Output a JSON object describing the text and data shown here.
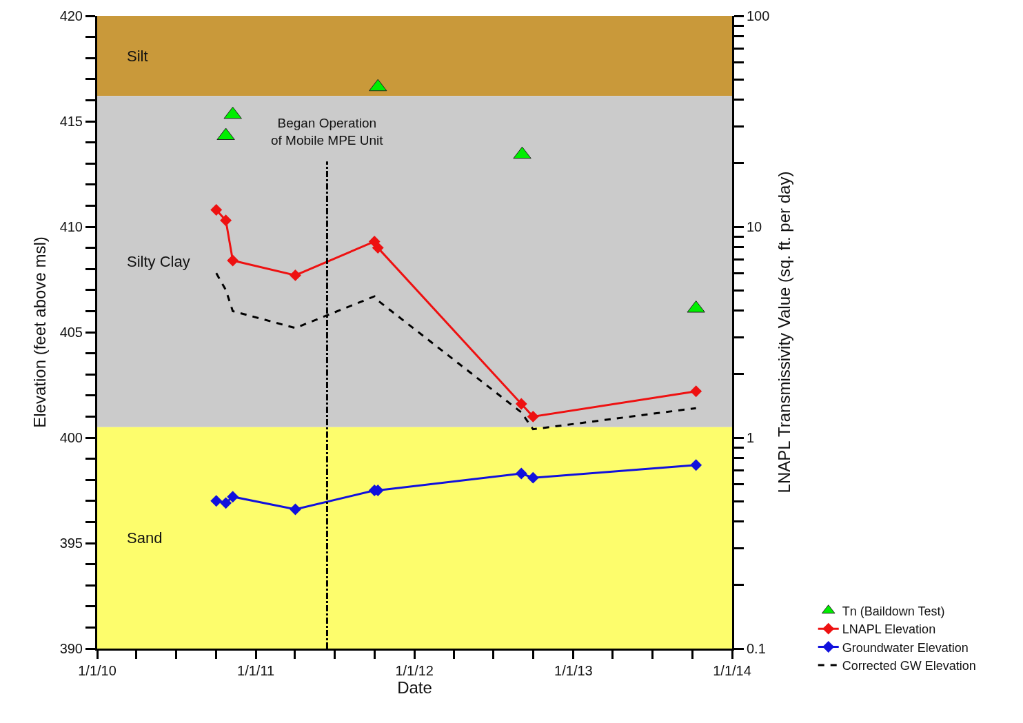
{
  "chart_data": {
    "type": "line",
    "xlabel": "Date",
    "ylabel": "Elevation (feet above msl)",
    "y2label": "LNAPL Transmissivity Value (sq. ft. per day)",
    "xlim": [
      "2010-01-01",
      "2014-01-01"
    ],
    "xticks": [
      {
        "value": "2010-01-01",
        "label": "1/1/10"
      },
      {
        "value": "2010-04-01",
        "label": null
      },
      {
        "value": "2010-07-01",
        "label": null
      },
      {
        "value": "2010-10-01",
        "label": null
      },
      {
        "value": "2011-01-01",
        "label": "1/1/11"
      },
      {
        "value": "2011-04-01",
        "label": null
      },
      {
        "value": "2011-07-01",
        "label": null
      },
      {
        "value": "2011-10-01",
        "label": null
      },
      {
        "value": "2012-01-01",
        "label": "1/1/12"
      },
      {
        "value": "2012-04-01",
        "label": null
      },
      {
        "value": "2012-07-01",
        "label": null
      },
      {
        "value": "2012-10-01",
        "label": null
      },
      {
        "value": "2013-01-01",
        "label": "1/1/13"
      },
      {
        "value": "2013-04-01",
        "label": null
      },
      {
        "value": "2013-07-01",
        "label": null
      },
      {
        "value": "2013-10-01",
        "label": null
      },
      {
        "value": "2014-01-01",
        "label": "1/1/14"
      }
    ],
    "ylim": [
      390,
      420
    ],
    "yticks": [
      390,
      {
        "value": 391,
        "label": null
      },
      {
        "value": 392,
        "label": null
      },
      {
        "value": 393,
        "label": null
      },
      {
        "value": 394,
        "label": null
      },
      395,
      {
        "value": 396,
        "label": null
      },
      {
        "value": 397,
        "label": null
      },
      {
        "value": 398,
        "label": null
      },
      {
        "value": 399,
        "label": null
      },
      400,
      {
        "value": 401,
        "label": null
      },
      {
        "value": 402,
        "label": null
      },
      {
        "value": 403,
        "label": null
      },
      {
        "value": 404,
        "label": null
      },
      405,
      {
        "value": 406,
        "label": null
      },
      {
        "value": 407,
        "label": null
      },
      {
        "value": 408,
        "label": null
      },
      {
        "value": 409,
        "label": null
      },
      410,
      {
        "value": 411,
        "label": null
      },
      {
        "value": 412,
        "label": null
      },
      {
        "value": 413,
        "label": null
      },
      {
        "value": 414,
        "label": null
      },
      415,
      {
        "value": 416,
        "label": null
      },
      {
        "value": 417,
        "label": null
      },
      {
        "value": 418,
        "label": null
      },
      {
        "value": 419,
        "label": null
      },
      420
    ],
    "y2lim": [
      0.1,
      100
    ],
    "y2ticks": [
      0.1,
      {
        "value": 0.2,
        "label": null
      },
      {
        "value": 0.3,
        "label": null
      },
      {
        "value": 0.4,
        "label": null
      },
      {
        "value": 0.5,
        "label": null
      },
      {
        "value": 0.6,
        "label": null
      },
      {
        "value": 0.7,
        "label": null
      },
      {
        "value": 0.8,
        "label": null
      },
      {
        "value": 0.9,
        "label": null
      },
      1,
      {
        "value": 2,
        "label": null
      },
      {
        "value": 3,
        "label": null
      },
      {
        "value": 4,
        "label": null
      },
      {
        "value": 5,
        "label": null
      },
      {
        "value": 6,
        "label": null
      },
      {
        "value": 7,
        "label": null
      },
      {
        "value": 8,
        "label": null
      },
      {
        "value": 9,
        "label": null
      },
      10,
      {
        "value": 20,
        "label": null
      },
      {
        "value": 30,
        "label": null
      },
      {
        "value": 40,
        "label": null
      },
      {
        "value": 50,
        "label": null
      },
      {
        "value": 60,
        "label": null
      },
      {
        "value": 70,
        "label": null
      },
      {
        "value": 80,
        "label": null
      },
      {
        "value": 90,
        "label": null
      },
      100
    ],
    "log": "y2",
    "grid": false,
    "legend": "bottom right",
    "bands": [
      {
        "axis": "y",
        "from": 416.2,
        "to": 420,
        "label": "Silt",
        "color": "#c9993a"
      },
      {
        "axis": "y",
        "from": 400.5,
        "to": 416.2,
        "label": "Silty Clay",
        "color": "#cbcbcb"
      },
      {
        "axis": "y",
        "from": 390,
        "to": 400.5,
        "label": "Sand",
        "color": "#fdfd6c"
      }
    ],
    "ref_lines": [
      {
        "axis": "x",
        "value": "2011-06-14",
        "label": "Began Operation\nof Mobile MPE Unit",
        "color": "#000000",
        "line_style": "dashdot"
      }
    ],
    "series": [
      {
        "name": "Tn (Baildown Test)",
        "type": "scatter",
        "axis": "y2",
        "marker": "triangle",
        "color": "#00ee00",
        "x": [
          "2010-10-24",
          "2010-11-09",
          "2011-10-09",
          "2012-09-05",
          "2013-10-10"
        ],
        "values": [
          27,
          34,
          46,
          22,
          4.1
        ]
      },
      {
        "name": "LNAPL Elevation",
        "marker": "diamond",
        "line_style": "solid",
        "color": "#ee1111",
        "x": [
          "2010-10-02",
          "2010-10-24",
          "2010-11-09",
          "2011-04-02",
          "2011-10-01",
          "2011-10-09",
          "2012-09-03",
          "2012-09-30",
          "2013-10-10"
        ],
        "values": [
          410.8,
          410.3,
          408.4,
          407.7,
          409.3,
          409.0,
          401.6,
          401.0,
          402.2
        ]
      },
      {
        "name": "Groundwater Elevation",
        "marker": "diamond",
        "line_style": "solid",
        "color": "#1111dd",
        "x": [
          "2010-10-02",
          "2010-10-24",
          "2010-11-09",
          "2011-04-02",
          "2011-10-01",
          "2011-10-09",
          "2012-09-03",
          "2012-09-30",
          "2013-10-10"
        ],
        "values": [
          397.0,
          396.9,
          397.2,
          396.6,
          397.5,
          397.5,
          398.3,
          398.1,
          398.7
        ]
      },
      {
        "name": "Corrected GW Elevation",
        "marker": "none",
        "line_style": "dashed",
        "color": "#000000",
        "x": [
          "2010-10-02",
          "2010-10-24",
          "2010-11-09",
          "2011-04-02",
          "2011-10-01",
          "2011-10-09",
          "2012-09-03",
          "2012-09-30",
          "2013-10-10"
        ],
        "values": [
          407.8,
          407.0,
          406.0,
          405.2,
          406.7,
          406.5,
          401.2,
          400.4,
          401.4
        ]
      }
    ]
  }
}
